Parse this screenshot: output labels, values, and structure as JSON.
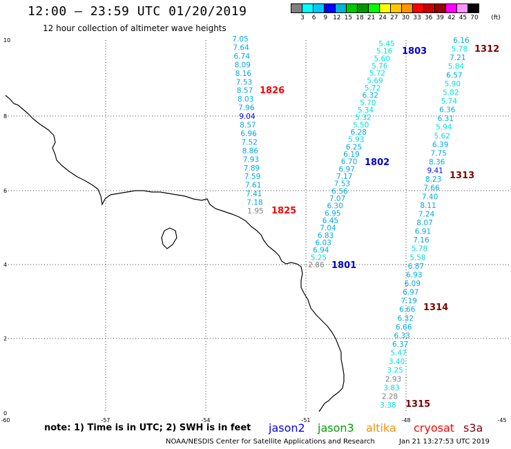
{
  "header": {
    "title": "12:00 – 23:59 UTC 01/20/2019",
    "subtitle": "12 hour collection of altimeter wave heights"
  },
  "colorbar": {
    "unit": "(ft)",
    "swatches": [
      "#808080",
      "#00ffff",
      "#00c8ff",
      "#0000ff",
      "#00b4d2",
      "#00c800",
      "#009600",
      "#00ff00",
      "#ffff00",
      "#ffc800",
      "#ff9600",
      "#ff0000",
      "#c80000",
      "#960000",
      "#ff00ff",
      "#ff96ff",
      "#000000"
    ],
    "labels": [
      "3",
      "6",
      "9",
      "12",
      "15",
      "18",
      "21",
      "24",
      "27",
      "30",
      "33",
      "36",
      "39",
      "42",
      "45",
      "70"
    ]
  },
  "axes": {
    "x_ticks": [
      "-60",
      "-57",
      "-54",
      "-51",
      "-48",
      "-45"
    ],
    "y_ticks": [
      "0",
      "2",
      "4",
      "6",
      "8",
      "10"
    ]
  },
  "tracks": [
    {
      "pass": "1826",
      "pass_color": "#ff0000",
      "values": [
        "7.05",
        "7.64",
        "6.74",
        "8.09",
        "8.16",
        "7.53",
        "8.57",
        "8.03",
        "7.96",
        "9.04",
        "8.57",
        "6.96",
        "7.52",
        "8.86",
        "7.93",
        "7.89",
        "7.59",
        "7.61",
        "7.41",
        "7.18",
        "1.95"
      ]
    },
    {
      "pass": "1825",
      "pass_color": "#ff0000",
      "values": []
    },
    {
      "pass": "1803",
      "pass_color": "#0000cc",
      "values": [
        "5.45",
        "5.16",
        "5.60",
        "5.76",
        "5.72",
        "5.69",
        "5.72",
        "6.32",
        "5.70",
        "5.34",
        "5.32",
        "5.50",
        "6.28",
        "5.93",
        "6.25",
        "6.19",
        "6.70",
        "6.97",
        "7.17",
        "7.53",
        "6.56",
        "7.07",
        "6.30",
        "6.95",
        "6.45",
        "7.04",
        "6.83",
        "6.03",
        "6.94",
        "5.25",
        "2.86"
      ]
    },
    {
      "pass": "1802",
      "pass_color": "#0000cc",
      "values": []
    },
    {
      "pass": "1801",
      "pass_color": "#0000cc",
      "values": []
    },
    {
      "pass": "1312",
      "pass_color": "#800000",
      "values": [
        "6.16",
        "5.78",
        "7.21",
        "5.84",
        "6.57",
        "5.90",
        "5.82",
        "5.74",
        "6.36",
        "6.31",
        "5.94",
        "5.62",
        "6.39",
        "7.75",
        "8.36",
        "9.41",
        "8.23",
        "7.66",
        "7.40",
        "8.11",
        "7.24",
        "8.07",
        "6.91",
        "7.16",
        "5.78",
        "5.58",
        "6.87",
        "6.93",
        "6.09",
        "6.97",
        "7.19",
        "6.66",
        "6.32",
        "6.66",
        "6.33",
        "6.37",
        "5.47",
        "3.40",
        "3.25",
        "2.93",
        "3.83",
        "2.28",
        "3.38"
      ]
    },
    {
      "pass": "1313",
      "pass_color": "#800000",
      "values": []
    },
    {
      "pass": "1314",
      "pass_color": "#800000",
      "values": []
    },
    {
      "pass": "1315",
      "pass_color": "#800000",
      "values": []
    }
  ],
  "footer": {
    "note": "note:  1) Time is in UTC;  2) SWH is in feet",
    "satellites": [
      {
        "name": "jason2",
        "color": "#0000ff"
      },
      {
        "name": "jason3",
        "color": "#00a000"
      },
      {
        "name": "altika",
        "color": "#ff8c00"
      },
      {
        "name": "cryosat",
        "color": "#ff0000"
      },
      {
        "name": "s3a",
        "color": "#800000"
      }
    ],
    "credit": "NOAA/NESDIS Center for Satellite Applications and Research",
    "timestamp": "Jan 21 13:27:53 UTC 2019"
  }
}
